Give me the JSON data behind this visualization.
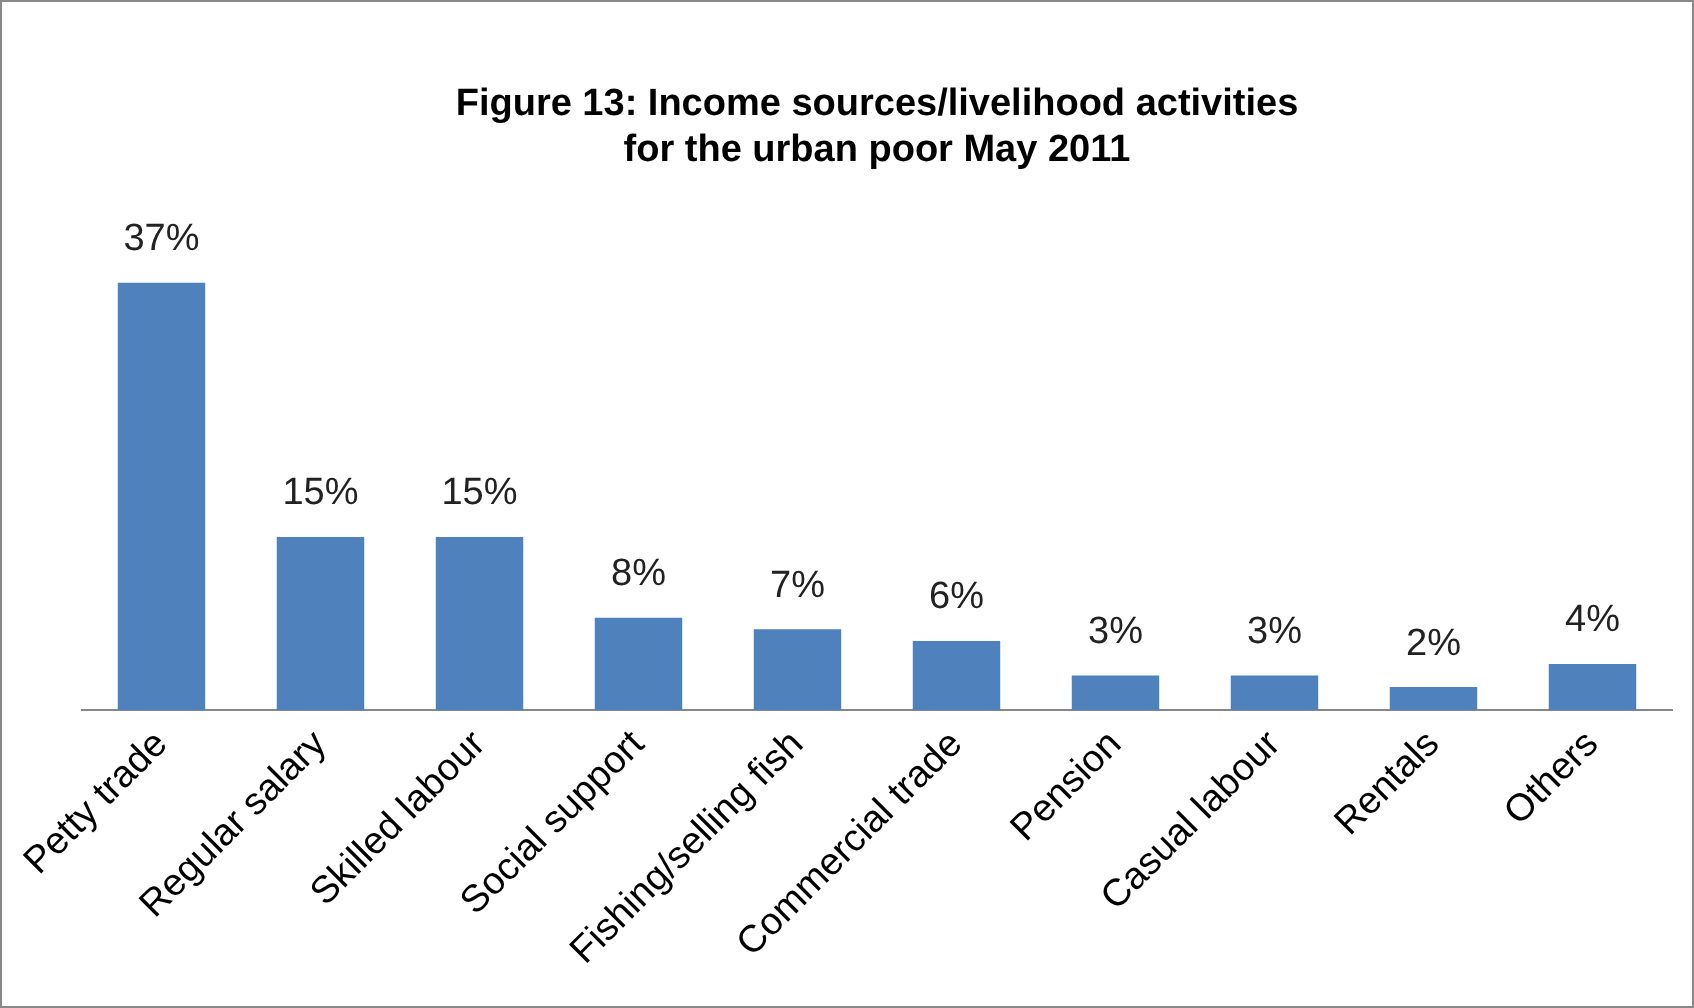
{
  "chart_data": {
    "type": "bar",
    "title": "Figure 13: Income sources/livelihood activities for the urban poor May 2011",
    "categories": [
      "Petty trade",
      "Regular salary",
      "Skilled labour",
      "Social support",
      "Fishing/selling fish",
      "Commercial trade",
      "Pension",
      "Casual labour",
      "Rentals",
      "Others"
    ],
    "values": [
      37,
      15,
      15,
      8,
      7,
      6,
      3,
      3,
      2,
      4
    ],
    "value_labels": [
      "37%",
      "15%",
      "15%",
      "8%",
      "7%",
      "6%",
      "3%",
      "3%",
      "2%",
      "4%"
    ],
    "color": "#4f81bd",
    "grid": false,
    "legend": false
  }
}
